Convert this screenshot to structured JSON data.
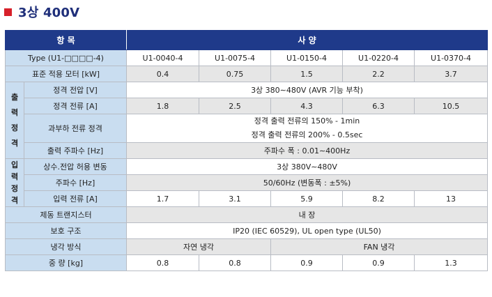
{
  "title": "3상 400V",
  "header": {
    "item": "항  목",
    "spec": "사  양"
  },
  "type_row": {
    "label": "Type (U1-□□□□-4)",
    "values": [
      "U1-0040-4",
      "U1-0075-4",
      "U1-0150-4",
      "U1-0220-4",
      "U1-0370-4"
    ]
  },
  "motor_row": {
    "label": "표준 적용 모터 [kW]",
    "values": [
      "0.4",
      "0.75",
      "1.5",
      "2.2",
      "3.7"
    ]
  },
  "output_group": [
    "출",
    "력",
    "정",
    "격"
  ],
  "output": {
    "voltage": {
      "label": "정격 전압 [V]",
      "value": "3상 380∼480V (AVR 기능 부착)"
    },
    "current": {
      "label": "정격 전류 [A]",
      "values": [
        "1.8",
        "2.5",
        "4.3",
        "6.3",
        "10.5"
      ]
    },
    "overload": {
      "label": "과부하 전류 정격",
      "line1": "정격 출력 전류의 150% - 1min",
      "line2": "정격 출력 전류의 200% - 0.5sec"
    },
    "frequency": {
      "label": "출력 주파수 [Hz]",
      "value": "주파수 폭 : 0.01∼400Hz"
    }
  },
  "input_group": [
    "입",
    "력",
    "정",
    "격"
  ],
  "input": {
    "variation": {
      "label": "상수.전압 허용 변동",
      "value": "3상 380V∼480V"
    },
    "frequency": {
      "label": "주파수 [Hz]",
      "value": "50/60Hz (변동폭 : ±5%)"
    },
    "current": {
      "label": "입력 전류 [A]",
      "values": [
        "1.7",
        "3.1",
        "5.9",
        "8.2",
        "13"
      ]
    }
  },
  "brake_row": {
    "label": "제동 트랜지스터",
    "value": "내  장"
  },
  "protection_row": {
    "label": "보호 구조",
    "value": "IP20 (IEC 60529), UL open type (UL50)"
  },
  "cooling_row": {
    "label": "냉각 방식",
    "value_a": "자연 냉각",
    "value_b": "FAN 냉각"
  },
  "weight_row": {
    "label": "중  량 [kg]",
    "values": [
      "0.8",
      "0.8",
      "0.9",
      "0.9",
      "1.3"
    ]
  }
}
